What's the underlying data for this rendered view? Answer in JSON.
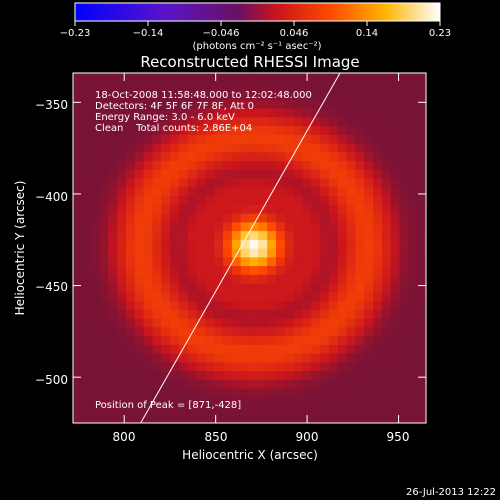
{
  "colorbar": {
    "ticks": [
      "−0.23",
      "−0.14",
      "−0.046",
      "0.046",
      "0.14",
      "0.23"
    ],
    "unit_label": "(photons cm⁻² s⁻¹ asec⁻²)",
    "range": [
      -0.23,
      0.23
    ]
  },
  "chart_data": {
    "type": "heatmap",
    "title": "Reconstructed RHESSI Image",
    "xlabel": "Heliocentric X (arcsec)",
    "ylabel": "Heliocentric Y (arcsec)",
    "xlim": [
      772,
      965
    ],
    "ylim": [
      -525,
      -334
    ],
    "x_ticks": [
      800,
      850,
      900,
      950
    ],
    "y_ticks": [
      -350,
      -400,
      -450,
      -500
    ],
    "y_tick_labels": [
      "−350",
      "−400",
      "−450",
      "−500"
    ],
    "source": {
      "peak_x": 871,
      "peak_y": -428,
      "peak_value": 0.23
    },
    "ring": {
      "radius_arcsec": 62,
      "value": 0.08
    },
    "limb_line": [
      [
        809,
        -525
      ],
      [
        918,
        -334
      ]
    ],
    "info_lines": [
      "18-Oct-2008 11:58:48.000 to 12:02:48.000",
      "Detectors: 4F 5F 6F 7F 8F, Att 0",
      "Energy Range: 3.0 - 6.0 keV",
      "Clean    Total counts: 2.86E+04"
    ],
    "peak_text": "Position of Peak = [871,-428]"
  },
  "footer": {
    "timestamp": "26-Jul-2013 12:22"
  }
}
